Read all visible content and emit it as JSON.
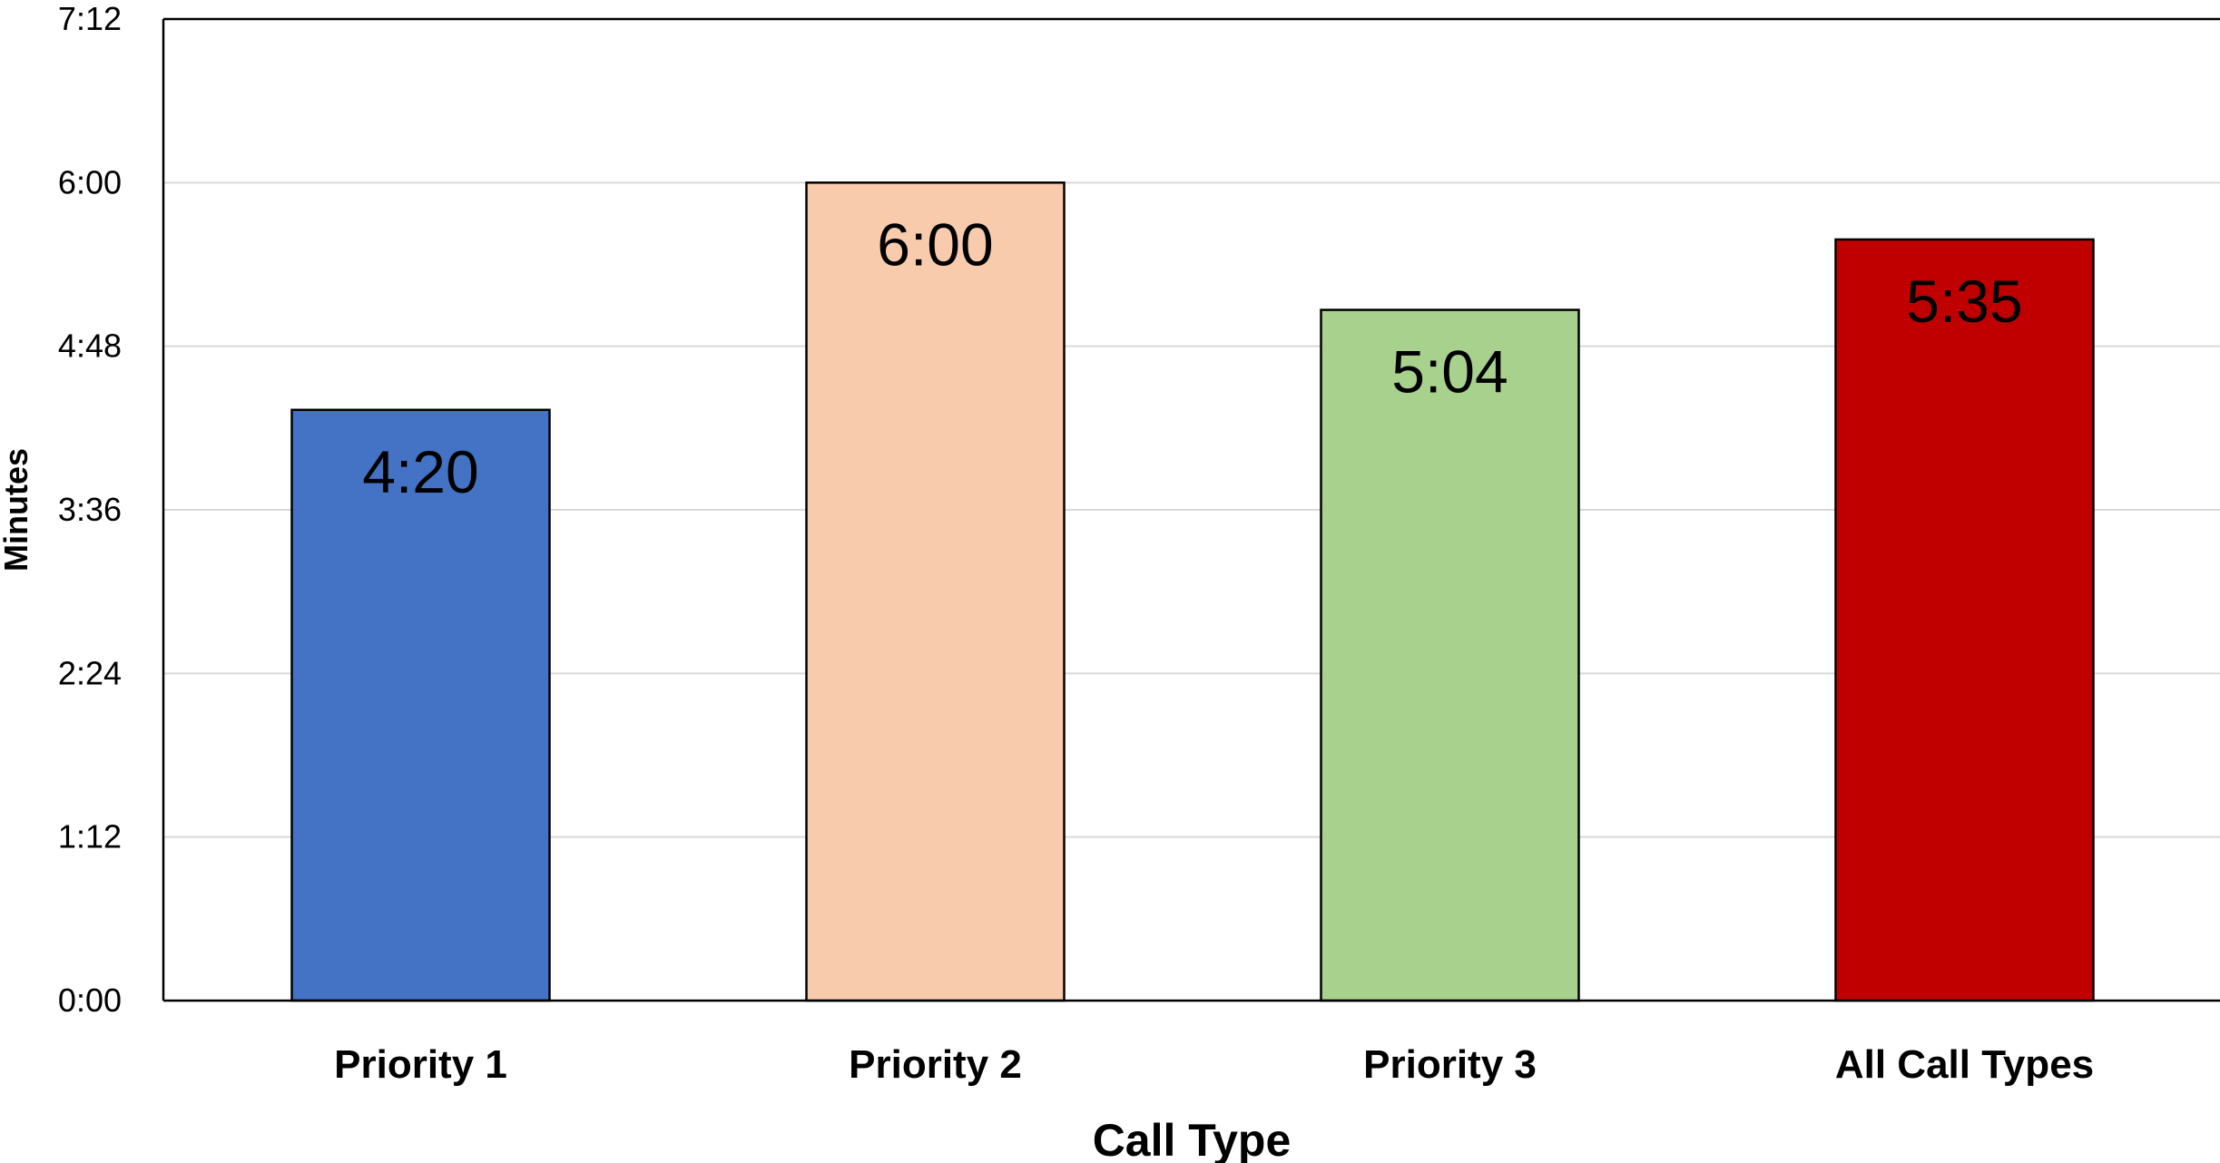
{
  "chart_data": {
    "type": "bar",
    "title": "",
    "xlabel": "Call Type",
    "ylabel": "Minutes",
    "categories": [
      "Priority 1",
      "Priority 2",
      "Priority 3",
      "All Call Types"
    ],
    "values": [
      260,
      360,
      304,
      335
    ],
    "value_labels": [
      "4:20",
      "6:00",
      "5:04",
      "5:35"
    ],
    "colors": [
      "#4472C4",
      "#F8CBAD",
      "#A9D18E",
      "#C00000"
    ],
    "ylim": [
      0,
      432
    ],
    "yticks": [
      0,
      72,
      144,
      216,
      288,
      360,
      432
    ],
    "ytick_labels": [
      "0:00",
      "1:12",
      "2:24",
      "3:36",
      "4:48",
      "6:00",
      "7:12"
    ],
    "grid": true,
    "legend": "none"
  }
}
